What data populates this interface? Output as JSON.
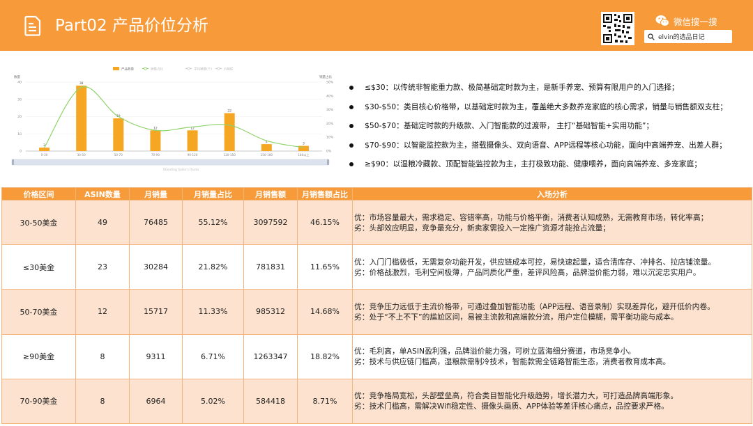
{
  "header": {
    "title": "Part02 产品价位分析",
    "wechat_label": "微信搜一搜",
    "search_text": "elvin的选品日记"
  },
  "chart_data": {
    "type": "bar",
    "categories": [
      "0-30",
      "30-50",
      "50-70",
      "70-90",
      "90-120",
      "120-150",
      "150-180",
      "180以上"
    ],
    "series": [
      {
        "name": "产品数量",
        "values": [
          2,
          38,
          19,
          12,
          12,
          22,
          4,
          3
        ]
      }
    ],
    "data_labels": [
      "2",
      "38",
      "19",
      "12",
      "12",
      "22",
      "4",
      "3"
    ],
    "line_series_values": [
      2,
      37,
      20,
      12,
      14,
      15,
      6,
      2
    ],
    "legend": [
      "产品数量",
      "销量占比",
      "平均销量(个)",
      "价格区"
    ],
    "legend_position": "top",
    "ylabel_left": "数量",
    "ylabel_right": "销量占比",
    "yticks_left": [
      "0",
      "10",
      "20",
      "30",
      "40"
    ],
    "yticks_right": [
      "0%",
      "10%",
      "20%",
      "30%",
      "40%",
      "50%"
    ],
    "ylim": [
      0,
      40
    ],
    "y2lim": [
      0,
      50
    ],
    "xlabel": "Standing Sales's Racks",
    "grid": true,
    "colors": {
      "bar": "#f5a623",
      "line": "#8fd36b"
    }
  },
  "bullets": [
    "≤$30：以传统非智能重力款、极简基础定时款为主，是新手养宠、预算有限用户的入门选择；",
    "$30-$50：类目核心价格带，以基础定时款为主，覆盖绝大多数养宠家庭的核心需求，销量与销售额双支柱；",
    "$50-$70：基础定时款的升级款、入门智能款的过渡带， 主打“基础智能+实用功能”；",
    "$70-$90：以智能监控款为主，搭载摄像头、双向语音、APP远程等核心功能，面向中高端养宠、出差人群；",
    "≥$90：以湿粮冷藏款、顶配智能监控款为主，主打极致功能、健康喂养，面向高端养宠、多宠家庭；"
  ],
  "table": {
    "headers": [
      "价格区间",
      "ASIN数量",
      "月销量",
      "月销量占比",
      "月销售额",
      "月销售额占比",
      "入场分析"
    ],
    "rows": [
      {
        "range": "30-50美金",
        "asin": "49",
        "sales": "76485",
        "sales_pct": "55.12%",
        "revenue": "3097592",
        "revenue_pct": "46.15%",
        "pro": "优：市场容量最大，需求稳定、容错率高，功能与价格平衡，消费者认知成熟，无需教育市场，转化率高；",
        "con": "劣：头部效应明显，竞争最充分，新卖家需投入一定推广资源才能抢占流量；"
      },
      {
        "range": "≤30美金",
        "asin": "23",
        "sales": "30284",
        "sales_pct": "21.82%",
        "revenue": "781831",
        "revenue_pct": "11.65%",
        "pro": "优：入门门槛极低，无需复杂功能开发，供应链成本可控，易快速起量，适合清库存、冲排名、拉店铺流量。",
        "con": "劣：价格战激烈，毛利空间极薄，产品同质化严重，差评风险高，品牌溢价能力弱，难以沉淀忠实用户。"
      },
      {
        "range": "50-70美金",
        "asin": "12",
        "sales": "15717",
        "sales_pct": "11.33%",
        "revenue": "985312",
        "revenue_pct": "14.68%",
        "pro": "优：竞争压力远低于主流价格带，可通过叠加智能功能（APP远程、语音录制）实现差异化，避开低价内卷。",
        "con": "劣：处于“不上不下”的尴尬区间，易被主流款和高端款分流，用户定位模糊，需平衡功能与成本。"
      },
      {
        "range": "≥90美金",
        "asin": "8",
        "sales": "9311",
        "sales_pct": "6.71%",
        "revenue": "1263347",
        "revenue_pct": "18.82%",
        "pro": "优：毛利高，单ASIN盈利强，品牌溢价能力强，可树立蓝海细分赛道，市场竞争小。",
        "con": "劣：技术与供应链门槛高，湿粮款需制冷技术，智能款需全链路智能生态，消费者教育成本高。"
      },
      {
        "range": "70-90美金",
        "asin": "8",
        "sales": "6964",
        "sales_pct": "5.02%",
        "revenue": "584418",
        "revenue_pct": "8.71%",
        "pro": "优：竞争格局宽松，头部壁垒高，符合类目智能化升级趋势，增长潜力大，可打造品牌高端形象。",
        "con": "劣：技术门槛高，需解决Wifi稳定性、摄像头画质、APP体验等差评核心痛点，品控要求严格。"
      }
    ]
  }
}
